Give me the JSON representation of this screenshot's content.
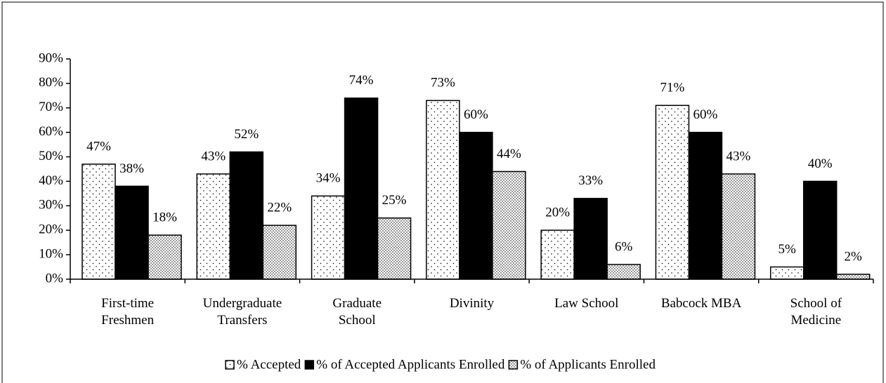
{
  "chart_data": {
    "type": "bar",
    "categories": [
      [
        "First-time",
        "Freshmen"
      ],
      [
        "Undergraduate",
        "Transfers"
      ],
      [
        "Graduate",
        "School"
      ],
      [
        "Divinity"
      ],
      [
        "Law School"
      ],
      [
        "Babcock MBA"
      ],
      [
        "School of",
        "Medicine"
      ]
    ],
    "series": [
      {
        "name": "% Accepted",
        "color": "#ffffff",
        "values": [
          47,
          43,
          34,
          73,
          20,
          71,
          5
        ],
        "value_labels": [
          "47%",
          "43%",
          "34%",
          "73%",
          "20%",
          "71%",
          "5%"
        ]
      },
      {
        "name": "% of Accepted Applicants Enrolled",
        "color": "#000000",
        "values": [
          38,
          52,
          74,
          60,
          33,
          60,
          40
        ],
        "value_labels": [
          "38%",
          "52%",
          "74%",
          "60%",
          "33%",
          "60%",
          "40%"
        ]
      },
      {
        "name": "% of Applicants Enrolled",
        "color": "#9a9a9a",
        "values": [
          18,
          22,
          25,
          44,
          6,
          43,
          2
        ],
        "value_labels": [
          "18%",
          "22%",
          "25%",
          "44%",
          "6%",
          "43%",
          "2%"
        ]
      }
    ],
    "ylim": [
      0,
      90
    ],
    "yticks": [
      {
        "value": 0,
        "label": "0%"
      },
      {
        "value": 10,
        "label": "10%"
      },
      {
        "value": 20,
        "label": "20%"
      },
      {
        "value": 30,
        "label": "30%"
      },
      {
        "value": 40,
        "label": "40%"
      },
      {
        "value": 50,
        "label": "50%"
      },
      {
        "value": 60,
        "label": "60%"
      },
      {
        "value": 70,
        "label": "70%"
      },
      {
        "value": 80,
        "label": "80%"
      },
      {
        "value": 90,
        "label": "90%"
      }
    ],
    "grid": false
  }
}
